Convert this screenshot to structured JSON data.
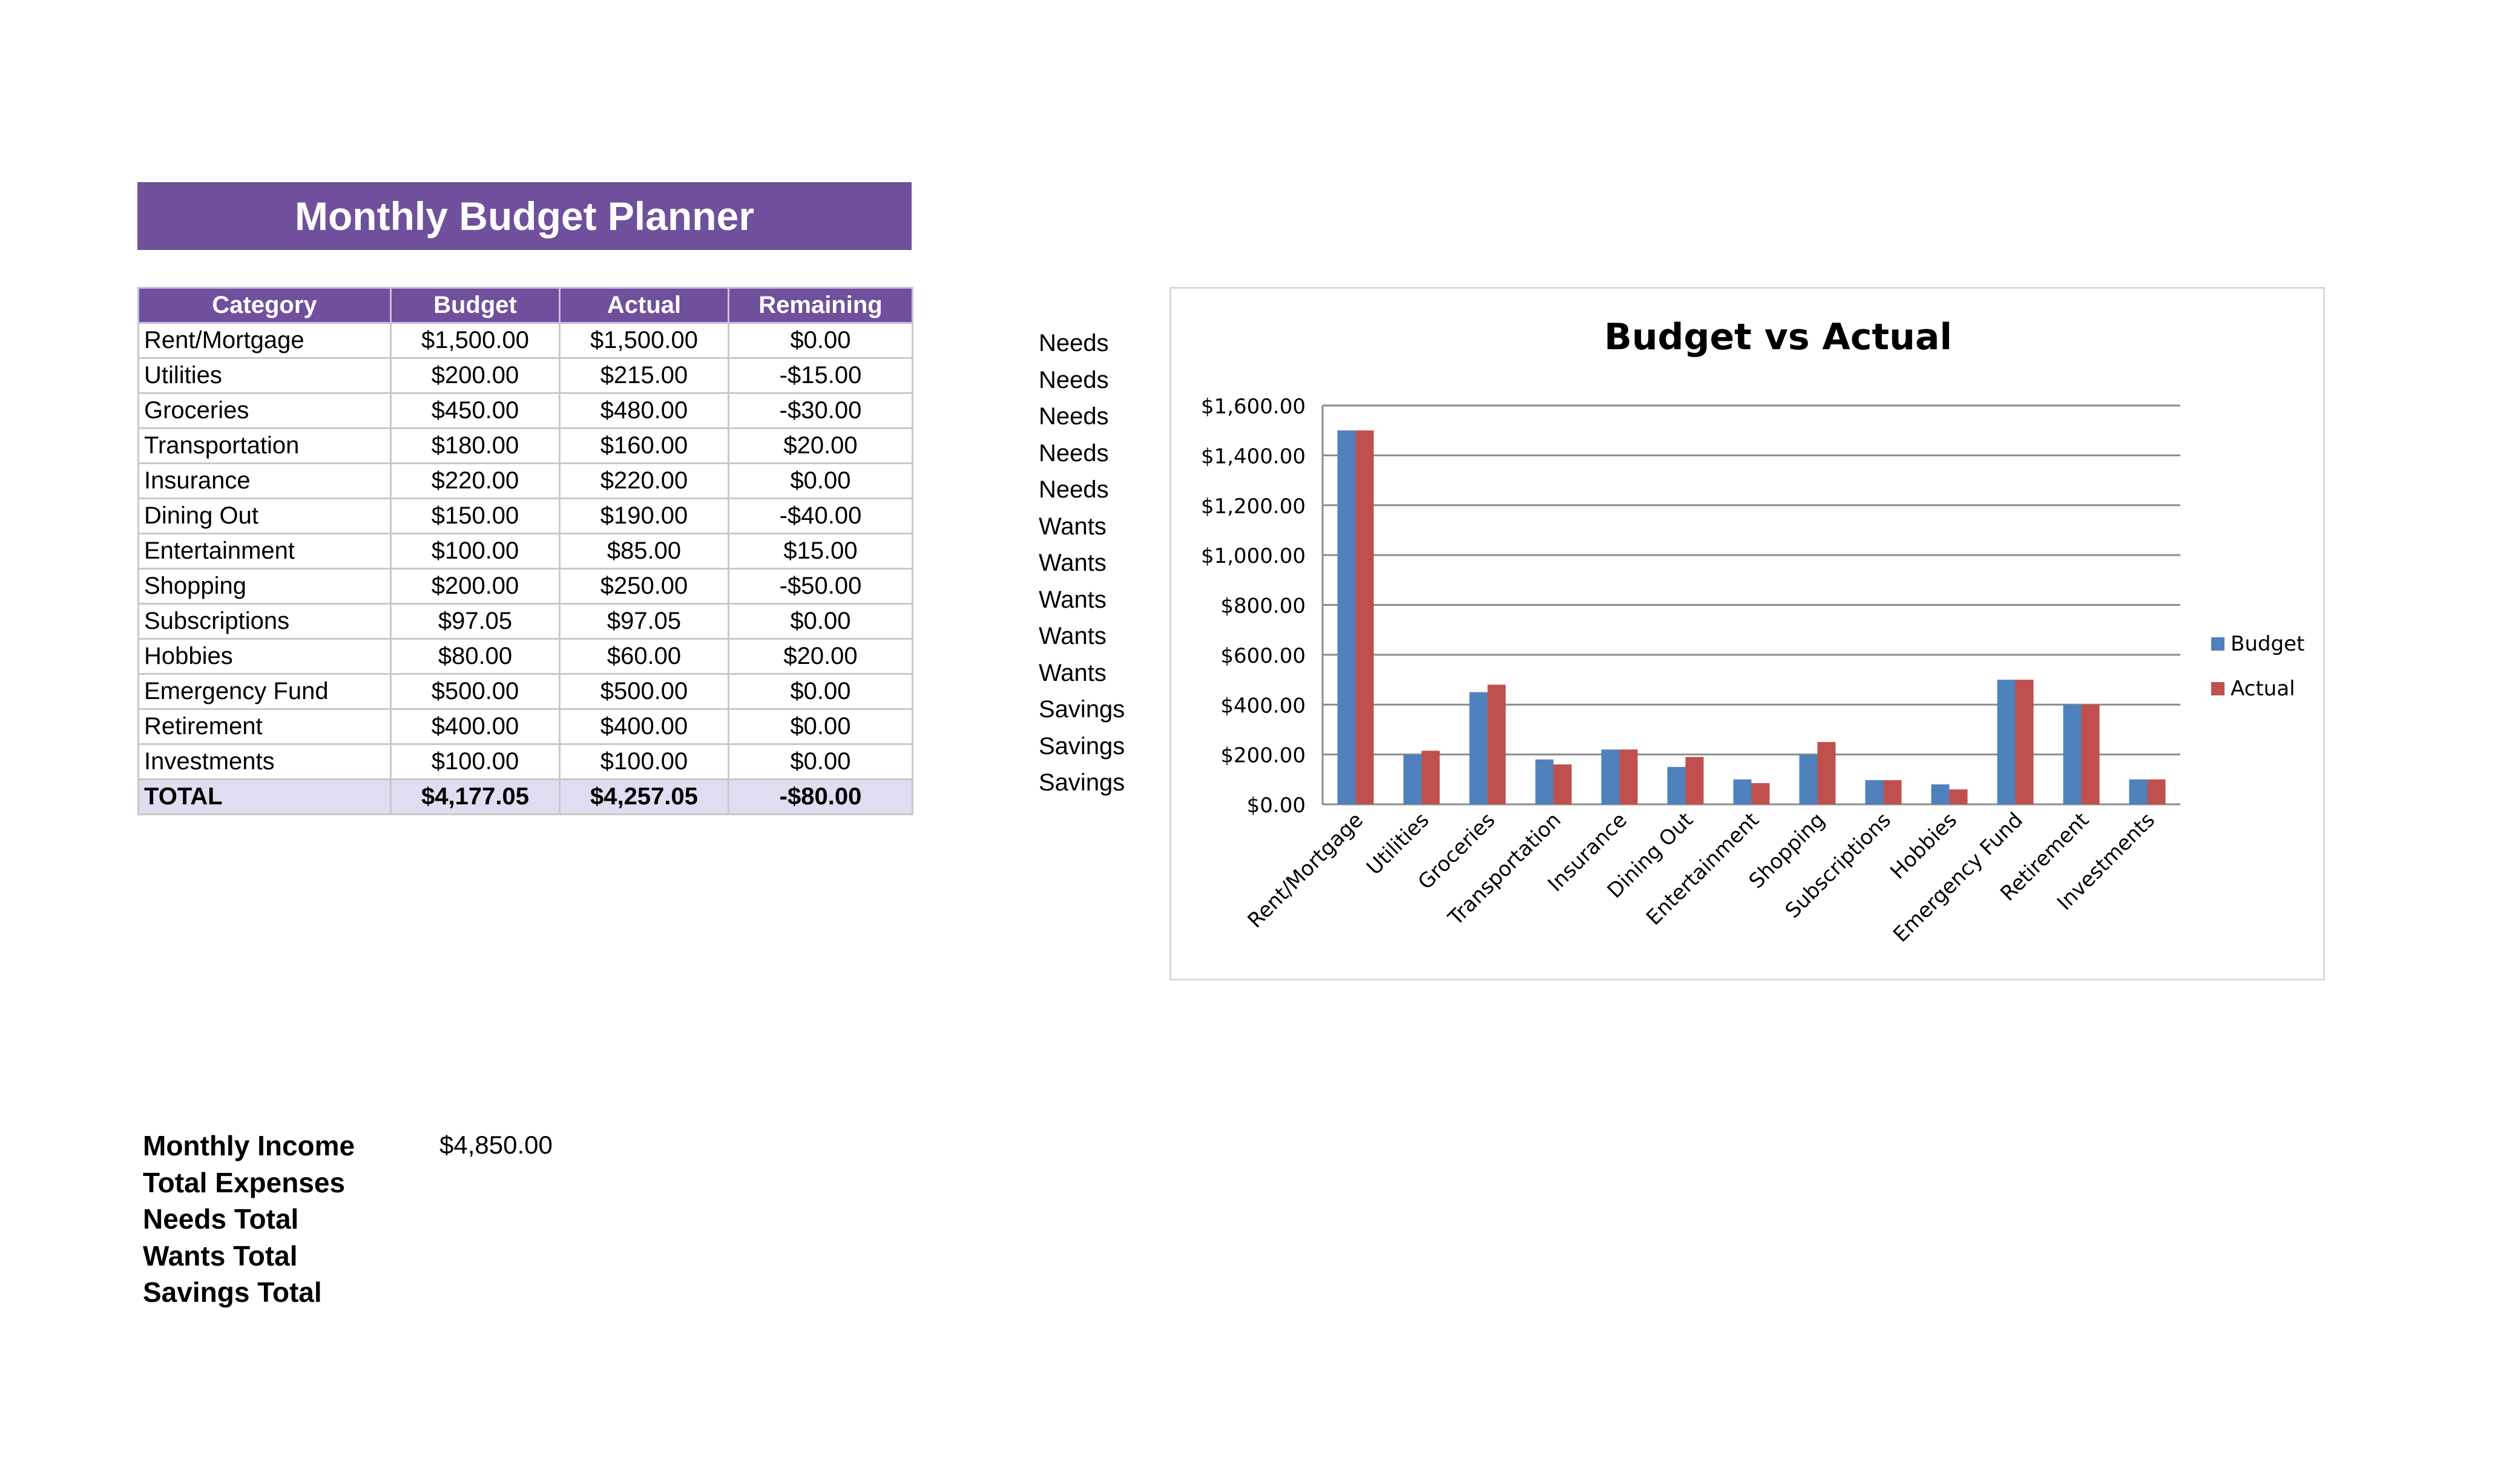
{
  "header": {
    "title": "Monthly Budget Planner"
  },
  "table": {
    "columns": [
      "Category",
      "Budget",
      "Actual",
      "Remaining"
    ],
    "rows": [
      {
        "category": "Rent/Mortgage",
        "budget": "$1,500.00",
        "actual": "$1,500.00",
        "remaining": "$0.00",
        "type": "Needs"
      },
      {
        "category": "Utilities",
        "budget": "$200.00",
        "actual": "$215.00",
        "remaining": "-$15.00",
        "type": "Needs"
      },
      {
        "category": "Groceries",
        "budget": "$450.00",
        "actual": "$480.00",
        "remaining": "-$30.00",
        "type": "Needs"
      },
      {
        "category": "Transportation",
        "budget": "$180.00",
        "actual": "$160.00",
        "remaining": "$20.00",
        "type": "Needs"
      },
      {
        "category": "Insurance",
        "budget": "$220.00",
        "actual": "$220.00",
        "remaining": "$0.00",
        "type": "Needs"
      },
      {
        "category": "Dining Out",
        "budget": "$150.00",
        "actual": "$190.00",
        "remaining": "-$40.00",
        "type": "Wants"
      },
      {
        "category": "Entertainment",
        "budget": "$100.00",
        "actual": "$85.00",
        "remaining": "$15.00",
        "type": "Wants"
      },
      {
        "category": "Shopping",
        "budget": "$200.00",
        "actual": "$250.00",
        "remaining": "-$50.00",
        "type": "Wants"
      },
      {
        "category": "Subscriptions",
        "budget": "$97.05",
        "actual": "$97.05",
        "remaining": "$0.00",
        "type": "Wants"
      },
      {
        "category": "Hobbies",
        "budget": "$80.00",
        "actual": "$60.00",
        "remaining": "$20.00",
        "type": "Wants"
      },
      {
        "category": "Emergency Fund",
        "budget": "$500.00",
        "actual": "$500.00",
        "remaining": "$0.00",
        "type": "Savings"
      },
      {
        "category": "Retirement",
        "budget": "$400.00",
        "actual": "$400.00",
        "remaining": "$0.00",
        "type": "Savings"
      },
      {
        "category": "Investments",
        "budget": "$100.00",
        "actual": "$100.00",
        "remaining": "$0.00",
        "type": "Savings"
      }
    ],
    "total": {
      "category": "TOTAL",
      "budget": "$4,177.05",
      "actual": "$4,257.05",
      "remaining": "-$80.00"
    }
  },
  "summary": [
    {
      "label": "Monthly Income",
      "value": "$4,850.00"
    },
    {
      "label": "Total Expenses",
      "value": ""
    },
    {
      "label": "Needs Total",
      "value": ""
    },
    {
      "label": "Wants Total",
      "value": ""
    },
    {
      "label": "Savings Total",
      "value": ""
    }
  ],
  "chart_data": {
    "type": "bar",
    "title": "Budget vs Actual",
    "xlabel": "",
    "ylabel": "",
    "categories": [
      "Rent/Mortgage",
      "Utilities",
      "Groceries",
      "Transportation",
      "Insurance",
      "Dining Out",
      "Entertainment",
      "Shopping",
      "Subscriptions",
      "Hobbies",
      "Emergency Fund",
      "Retirement",
      "Investments"
    ],
    "series": [
      {
        "name": "Budget",
        "color": "#4f81bd",
        "values": [
          1500,
          200,
          450,
          180,
          220,
          150,
          100,
          200,
          97.05,
          80,
          500,
          400,
          100
        ]
      },
      {
        "name": "Actual",
        "color": "#c0504d",
        "values": [
          1500,
          215,
          480,
          160,
          220,
          190,
          85,
          250,
          97.05,
          60,
          500,
          400,
          100
        ]
      }
    ],
    "ylim": [
      0,
      1600
    ],
    "yticks": [
      0,
      200,
      400,
      600,
      800,
      1000,
      1200,
      1400,
      1600
    ],
    "ytick_labels": [
      "$0.00",
      "$200.00",
      "$400.00",
      "$600.00",
      "$800.00",
      "$1,000.00",
      "$1,200.00",
      "$1,400.00",
      "$1,600.00"
    ],
    "grid": true,
    "legend_position": "right"
  }
}
